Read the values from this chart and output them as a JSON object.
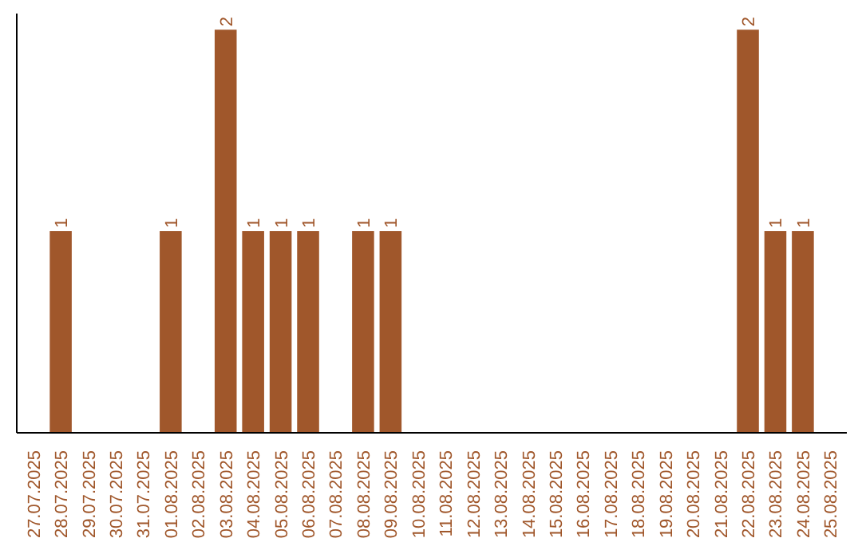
{
  "chart_data": {
    "type": "bar",
    "categories": [
      "27.07.2025",
      "28.07.2025",
      "29.07.2025",
      "30.07.2025",
      "31.07.2025",
      "01.08.2025",
      "02.08.2025",
      "03.08.2025",
      "04.08.2025",
      "05.08.2025",
      "06.08.2025",
      "07.08.2025",
      "08.08.2025",
      "09.08.2025",
      "10.08.2025",
      "11.08.2025",
      "12.08.2025",
      "13.08.2025",
      "14.08.2025",
      "15.08.2025",
      "16.08.2025",
      "17.08.2025",
      "18.08.2025",
      "19.08.2025",
      "20.08.2025",
      "21.08.2025",
      "22.08.2025",
      "23.08.2025",
      "24.08.2025",
      "25.08.2025"
    ],
    "values": [
      0,
      1,
      0,
      0,
      0,
      1,
      0,
      2,
      1,
      1,
      1,
      0,
      1,
      1,
      0,
      0,
      0,
      0,
      0,
      0,
      0,
      0,
      0,
      0,
      0,
      0,
      2,
      1,
      1,
      0
    ],
    "value_labels": [
      null,
      "1",
      null,
      null,
      null,
      "1",
      null,
      "2",
      "1",
      "1",
      "1",
      null,
      "1",
      "1",
      null,
      null,
      null,
      null,
      null,
      null,
      null,
      null,
      null,
      null,
      null,
      null,
      "2",
      "1",
      "1",
      null
    ],
    "color": "#a0572b",
    "grid": false
  }
}
